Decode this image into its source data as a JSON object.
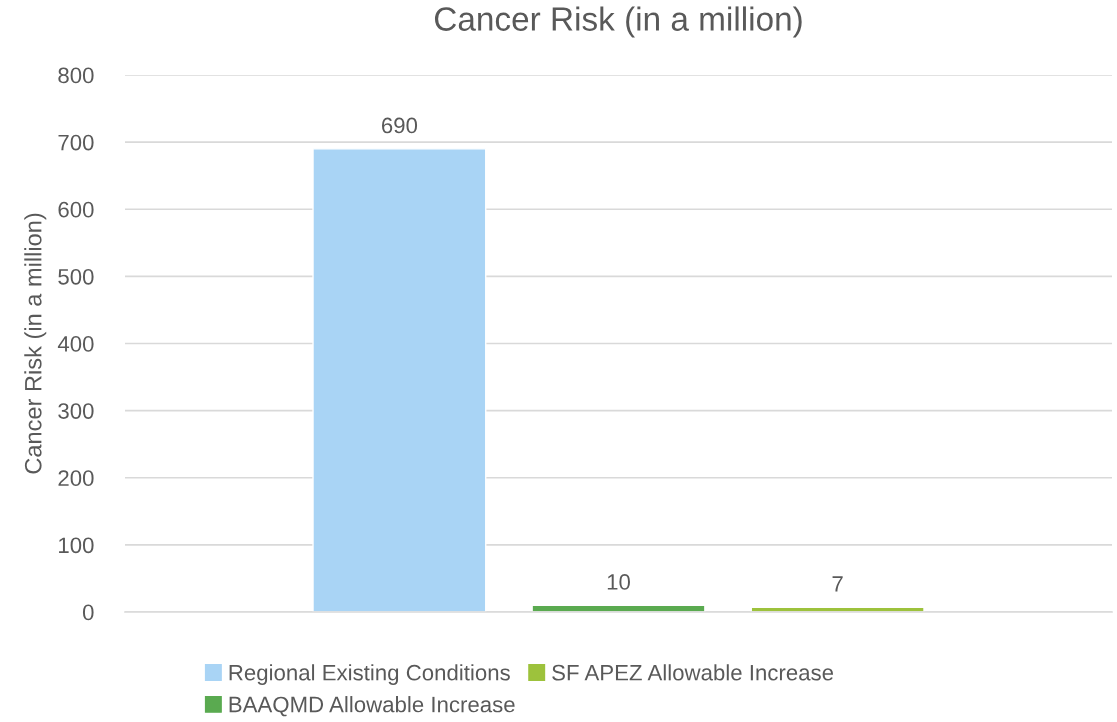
{
  "chart_data": {
    "type": "bar",
    "title": "Cancer Risk (in a million)",
    "ylabel": "Cancer Risk (in a million)",
    "categories": [
      null
    ],
    "series": [
      {
        "name": "Regional Existing Conditions",
        "color": "#a9d4f5",
        "values": [
          690
        ]
      },
      {
        "name": "BAAQMD Allowable Increase",
        "color": "#5aaa50",
        "values": [
          10
        ]
      },
      {
        "name": "SF APEZ Allowable Increase",
        "color": "#9dc23c",
        "values": [
          7
        ]
      }
    ],
    "ylim": [
      0,
      800
    ],
    "yticks": [
      0,
      100,
      200,
      300,
      400,
      500,
      600,
      700,
      800
    ],
    "grid": "y",
    "legend": "bottom",
    "data_labels": true
  }
}
